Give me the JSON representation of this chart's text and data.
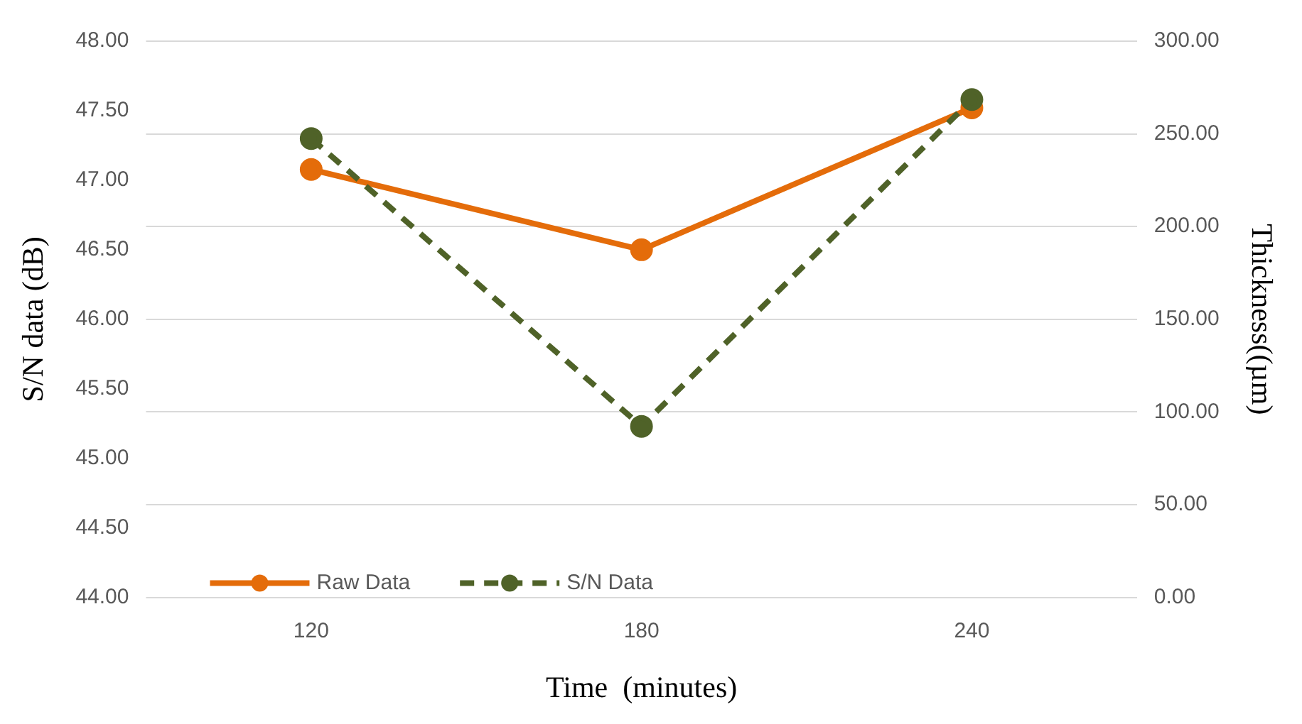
{
  "chart_data": {
    "type": "line",
    "xlabel": "Time  (minutes)",
    "ylabel": "S/N data (dB)",
    "y2label": "Thickness((µm)",
    "categories": [
      "120",
      "180",
      "240"
    ],
    "series": [
      {
        "name": "Raw Data",
        "color": "#e46c0a",
        "values": [
          230.8,
          187.5,
          264
        ],
        "axis": "y2",
        "line_style": "solid"
      },
      {
        "name": "S/N Data",
        "color": "#4f6228",
        "values": [
          47.3,
          45.23,
          47.58
        ],
        "axis": "y",
        "line_style": "dashed"
      }
    ],
    "ylim": [
      44,
      48
    ],
    "yticks": [
      {
        "value": 44,
        "label": "44.00"
      },
      {
        "value": 44.5,
        "label": "44.50"
      },
      {
        "value": 45,
        "label": "45.00"
      },
      {
        "value": 45.5,
        "label": "45.50"
      },
      {
        "value": 46,
        "label": "46.00"
      },
      {
        "value": 46.5,
        "label": "46.50"
      },
      {
        "value": 47,
        "label": "47.00"
      },
      {
        "value": 47.5,
        "label": "47.50"
      },
      {
        "value": 48,
        "label": "48.00"
      }
    ],
    "y2lim": [
      0,
      300
    ],
    "y2ticks": [
      {
        "value": 0,
        "label": "0.00"
      },
      {
        "value": 50,
        "label": "50.00"
      },
      {
        "value": 100,
        "label": "100.00"
      },
      {
        "value": 150,
        "label": "150.00"
      },
      {
        "value": 200,
        "label": "200.00"
      },
      {
        "value": 250,
        "label": "250.00"
      },
      {
        "value": 300,
        "label": "300.00"
      }
    ],
    "grid": "y2",
    "legend": "bottom left",
    "marker": "circle"
  }
}
